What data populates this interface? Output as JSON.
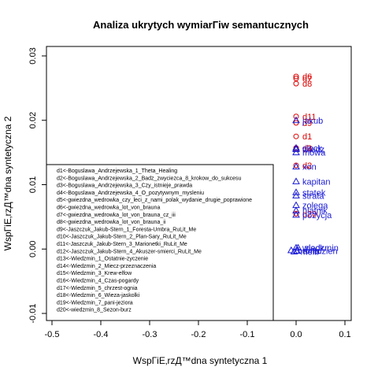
{
  "chart_data": {
    "type": "scatter",
    "title": "Analiza ukrytych wymiarГiw semantucznych",
    "xlabel": "WspГiE‚rzД™dna syntetyczna 1",
    "ylabel": "WspГiE‚rzД™dna syntetyczna 2",
    "xlim": [
      -0.5,
      0.1
    ],
    "ylim": [
      -0.01,
      0.03
    ],
    "x_ticks": [
      "-0.5",
      "-0.4",
      "-0.3",
      "-0.2",
      "-0.1",
      "0.0",
      "0.1"
    ],
    "x_tick_values": [
      -0.5,
      -0.4,
      -0.3,
      -0.2,
      -0.1,
      0.0,
      0.1
    ],
    "y_ticks": [
      "-0.01",
      "0.00",
      "0.01",
      "0.02",
      "0.03"
    ],
    "y_tick_values": [
      -0.01,
      0.0,
      0.01,
      0.02,
      0.03
    ],
    "series": [
      {
        "name": "documents",
        "marker": "circle",
        "color": "#dd0000",
        "points": [
          {
            "label": "d6",
            "x": 0.0,
            "y": 0.0268
          },
          {
            "label": "d7",
            "x": 0.0,
            "y": 0.0265
          },
          {
            "label": "d8",
            "x": 0.0,
            "y": 0.0257
          },
          {
            "label": "d11",
            "x": 0.0,
            "y": 0.0206
          },
          {
            "label": "d9",
            "x": 0.0,
            "y": 0.0196
          },
          {
            "label": "d1",
            "x": 0.0,
            "y": 0.0175
          },
          {
            "label": "d3",
            "x": 0.0,
            "y": 0.0157
          },
          {
            "label": "d4",
            "x": 0.0,
            "y": 0.0155
          },
          {
            "label": "d2",
            "x": 0.0,
            "y": 0.013
          },
          {
            "label": "d20",
            "x": 0.0,
            "y": 0.0055
          }
        ]
      },
      {
        "name": "terms",
        "marker": "triangle",
        "color": "#1a1ad6",
        "points": [
          {
            "label": "jakub",
            "x": 0.0,
            "y": 0.02
          },
          {
            "label": "clock",
            "x": 0.0,
            "y": 0.0157
          },
          {
            "label": "wiedz",
            "x": 0.0,
            "y": 0.0155
          },
          {
            "label": "mowa",
            "x": 0.0,
            "y": 0.015
          },
          {
            "label": "xon",
            "x": 0.0,
            "y": 0.0128
          },
          {
            "label": "kapitan",
            "x": 0.0,
            "y": 0.0105
          },
          {
            "label": "statek",
            "x": 0.0,
            "y": 0.0088
          },
          {
            "label": "strata",
            "x": 0.0,
            "y": 0.0083
          },
          {
            "label": "zolega",
            "x": 0.0,
            "y": 0.0068
          },
          {
            "label": "hlatnik",
            "x": 0.0,
            "y": 0.006
          },
          {
            "label": "pozycja",
            "x": 0.0,
            "y": 0.0053
          },
          {
            "label": "wiedzmin",
            "x": 0.0,
            "y": 0.0002
          },
          {
            "label": "zlack",
            "x": 0.004,
            "y": 0.0002
          },
          {
            "label": "brona",
            "x": -0.01,
            "y": -0.0002
          },
          {
            "label": "melb",
            "x": -0.004,
            "y": -0.0004
          },
          {
            "label": "smidzien",
            "x": 0.002,
            "y": -0.0003
          }
        ]
      }
    ],
    "legend_position": "bottom-left",
    "legend": [
      "d1<-Boguslawa_Andrzejewska_1_Theta_Healing",
      "d2<-Boguslawa_Andrzejewska_2_Badz_zwyciezca_8_krokow_do_sukcesu",
      "d3<-Boguslawa_Andrzejewska_3_Czy_istnieje_prawda",
      "d4<-Boguslawa_Andrzejewska_4_O_pozytywnym_mysleniu",
      "d5<-gwiezdna_wedrowka_czy_leci_z_nami_polak_wydanie_drugie_poprawione",
      "d6<-gwiezdna_wedrowka_lot_von_brauna",
      "d7<-gwiezdna_wedrowka_lot_von_brauna_cz_iii",
      "d8<-gwiezdna_wedrowka_lot_von_brauna_ii",
      "d9<-Jaszczuk_Jakub-Stern_1_Foresta-Umbra_RuLit_Me",
      "d10<-Jaszczuk_Jakub-Stern_2_Plan-Sary_RuLit_Me",
      "d11<-Jaszczuk_Jakub-Stern_3_Marionetki_RuLit_Me",
      "d12<-Jaszczuk_Jakub-Stern_4_Akuszer-smierci_RuLit_Me",
      "d13<-Wiedzmin_1_Ostatnie-zyczenie",
      "d14<-Wiedzmin_2_Miecz-przeznaczenia",
      "d15<-Wiedzmin_3_Krew-elfow",
      "d16<-Wiedzmin_4_Czas-pogardy",
      "d17<-Wiedzmin_5_chrzest-ognia",
      "d18<-Wiedzmin_6_Wieza-jaskolki",
      "d19<-Wiedzmin_7_pani-jeziora",
      "d20<-wiedzmin_8_Sezon-burz"
    ]
  }
}
